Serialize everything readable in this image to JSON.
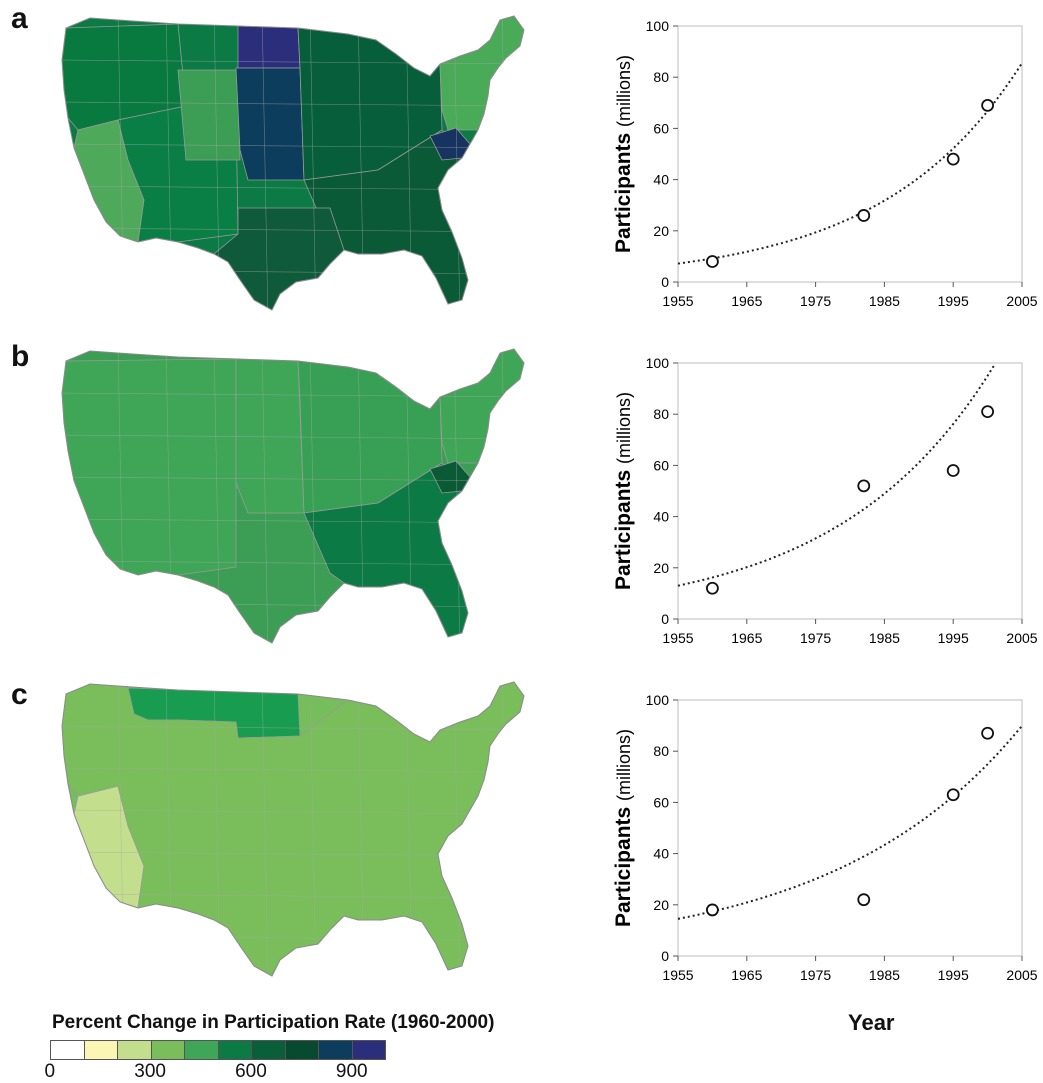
{
  "panels": [
    {
      "letter": "a"
    },
    {
      "letter": "b"
    },
    {
      "letter": "c"
    }
  ],
  "maps": [
    {
      "base_color": "#0b7a44",
      "regions": [
        {
          "name": "northwest",
          "color": "#087a40"
        },
        {
          "name": "california",
          "color": "#4ea95a"
        },
        {
          "name": "southwest",
          "color": "#0a7f45"
        },
        {
          "name": "colorado-wyoming",
          "color": "#3c9e55"
        },
        {
          "name": "north-dakota",
          "color": "#2b2f7b"
        },
        {
          "name": "south-dakota-nebraska-kansas",
          "color": "#0d3d5c"
        },
        {
          "name": "midwest",
          "color": "#065f3a"
        },
        {
          "name": "south",
          "color": "#0a5a37"
        },
        {
          "name": "texas-oklahoma",
          "color": "#0e5a3a"
        },
        {
          "name": "northeast",
          "color": "#49aa58"
        },
        {
          "name": "west-virginia",
          "color": "#16345f"
        }
      ]
    },
    {
      "base_color": "#3c9e55",
      "regions": [
        {
          "name": "west",
          "color": "#3ea656"
        },
        {
          "name": "plains",
          "color": "#3ea656"
        },
        {
          "name": "midwest",
          "color": "#38a054"
        },
        {
          "name": "south",
          "color": "#0b7a44"
        },
        {
          "name": "northeast",
          "color": "#3ea656"
        },
        {
          "name": "west-virginia",
          "color": "#0b5a36"
        }
      ]
    },
    {
      "base_color": "#76bd5b",
      "regions": [
        {
          "name": "california",
          "color": "#c3df8e"
        },
        {
          "name": "northwest",
          "color": "#6fb957"
        },
        {
          "name": "montana-north-dakota",
          "color": "#189c50"
        },
        {
          "name": "rest",
          "color": "#79be5a"
        }
      ]
    }
  ],
  "chart_data": [
    {
      "type": "scatter",
      "panel": "a",
      "xlabel": "",
      "ylabel": "Participants (millions)",
      "ylabel_bold": "Participants",
      "ylabel_unit": "(millions)",
      "xlim": [
        1955,
        2005
      ],
      "ylim": [
        0,
        100
      ],
      "x_ticks": [
        "1955",
        "1965",
        "1975",
        "1985",
        "1995",
        "2005"
      ],
      "y_ticks": [
        "0",
        "20",
        "40",
        "60",
        "80",
        "100"
      ],
      "points": [
        {
          "x": 1960,
          "y": 8
        },
        {
          "x": 1982,
          "y": 26
        },
        {
          "x": 1995,
          "y": 48
        },
        {
          "x": 2000,
          "y": 69
        }
      ],
      "trend": {
        "style": "dotted",
        "a": 7.2,
        "rate": 0.0495
      }
    },
    {
      "type": "scatter",
      "panel": "b",
      "xlabel": "",
      "ylabel": "Participants (millions)",
      "ylabel_bold": "Participants",
      "ylabel_unit": "(millions)",
      "xlim": [
        1955,
        2005
      ],
      "ylim": [
        0,
        100
      ],
      "x_ticks": [
        "1955",
        "1965",
        "1975",
        "1985",
        "1995",
        "2005"
      ],
      "y_ticks": [
        "0",
        "20",
        "40",
        "60",
        "80",
        "100"
      ],
      "points": [
        {
          "x": 1960,
          "y": 12
        },
        {
          "x": 1982,
          "y": 52
        },
        {
          "x": 1995,
          "y": 58
        },
        {
          "x": 2000,
          "y": 81
        }
      ],
      "trend": {
        "style": "dotted",
        "a": 13.0,
        "rate": 0.0442
      }
    },
    {
      "type": "scatter",
      "panel": "c",
      "xlabel": "Year",
      "ylabel": "Participants (millions)",
      "ylabel_bold": "Participants",
      "ylabel_unit": "(millions)",
      "xlim": [
        1955,
        2005
      ],
      "ylim": [
        0,
        100
      ],
      "x_ticks": [
        "1955",
        "1965",
        "1975",
        "1985",
        "1995",
        "2005"
      ],
      "y_ticks": [
        "0",
        "20",
        "40",
        "60",
        "80",
        "100"
      ],
      "points": [
        {
          "x": 1960,
          "y": 18
        },
        {
          "x": 1982,
          "y": 22
        },
        {
          "x": 1995,
          "y": 63
        },
        {
          "x": 2000,
          "y": 87
        }
      ],
      "trend": {
        "style": "dotted",
        "a": 14.5,
        "rate": 0.0365
      }
    }
  ],
  "legend": {
    "title": "Percent Change in Participation Rate (1960-2000)",
    "colors": [
      "#ffffff",
      "#fbf6b3",
      "#c3df8e",
      "#79be5a",
      "#3ea656",
      "#0b7a44",
      "#0a5e3a",
      "#074a30",
      "#0d3d5c",
      "#2b2f7b"
    ],
    "ticks": [
      {
        "label": "0",
        "value": 0
      },
      {
        "label": "300",
        "value": 300
      },
      {
        "label": "600",
        "value": 600
      },
      {
        "label": "900",
        "value": 900
      }
    ],
    "range": [
      0,
      1000
    ]
  },
  "year_label": "Year"
}
